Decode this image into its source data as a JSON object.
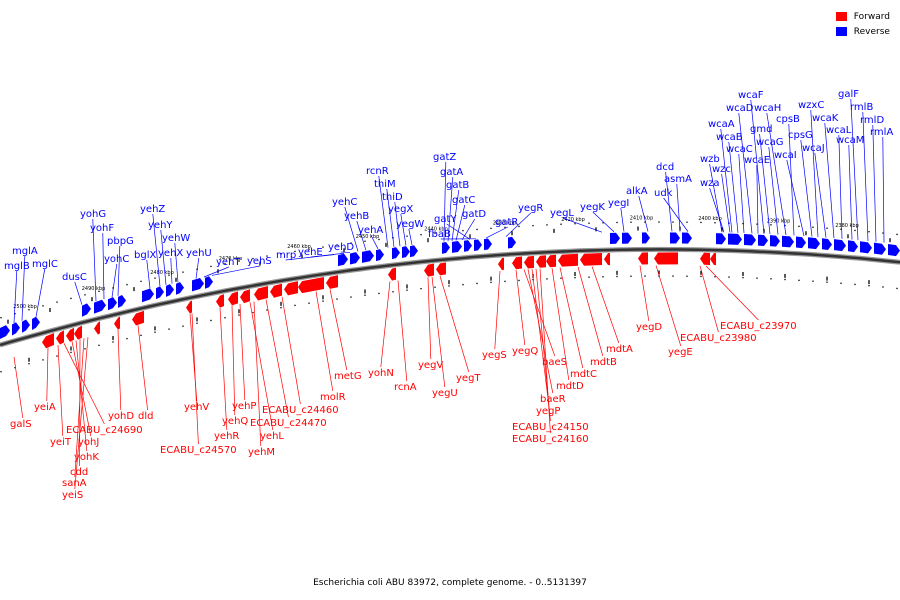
{
  "legend": {
    "forward": {
      "label": "Forward",
      "color": "#ff0000"
    },
    "reverse": {
      "label": "Reverse",
      "color": "#0000ff"
    }
  },
  "caption": "Escherichia coli ABU 83972, complete genome. - 0..5131397",
  "ticks": [
    "2500 kbp",
    "2490 kbp",
    "2480 kbp",
    "2470 kbp",
    "2460 kbp",
    "2450 kbp",
    "2440 kbp",
    "2430 kbp",
    "2420 kbp",
    "2410 kbp",
    "2400 kbp",
    "2390 kbp",
    "2380 kbp"
  ],
  "reverse_genes": [
    "mglA",
    "mglB",
    "mglC",
    "dusC",
    "yohG",
    "yohF",
    "yohC",
    "pbpG",
    "bglX",
    "yehZ",
    "yehY",
    "yehX",
    "yehW",
    "yehU",
    "yehT",
    "yehS",
    "mrp",
    "yehE",
    "yehD",
    "yehC",
    "yehB",
    "yehA",
    "rcnR",
    "thiM",
    "thiD",
    "yegX",
    "yegW",
    "gatZ",
    "gatA",
    "gatB",
    "gatC",
    "gatD",
    "gatY",
    "fbaB",
    "gatR",
    "yegR",
    "yegL",
    "yegK",
    "yegI",
    "alkA",
    "dcd",
    "asmA",
    "udk",
    "wzb",
    "wzc",
    "wza",
    "wcaA",
    "wcaB",
    "wcaC",
    "wcaD",
    "wcaE",
    "wcaF",
    "gmd",
    "wcaG",
    "wcaH",
    "cpsB",
    "wcaI",
    "cpsG",
    "wzxC",
    "wcaJ",
    "wcaK",
    "wcaL",
    "wcaM",
    "galF",
    "rmlB",
    "rmlD",
    "rmlA"
  ],
  "forward_genes": [
    "galS",
    "yeiA",
    "yeiT",
    "ECABU_c24690",
    "yohJ",
    "yohK",
    "cdd",
    "sanA",
    "yeiS",
    "yohD",
    "dld",
    "yehV",
    "ECABU_c24570",
    "yehR",
    "yehQ",
    "yehP",
    "yehL",
    "yehM",
    "ECABU_c24470",
    "ECABU_c24460",
    "molR",
    "metG",
    "yohN",
    "rcnA",
    "yegV",
    "yegU",
    "yegT",
    "yegS",
    "yegQ",
    "baeS",
    "baeR",
    "yegP",
    "ECABU_c24150",
    "ECABU_c24160",
    "mdtD",
    "mdtC",
    "mdtB",
    "mdtA",
    "yegD",
    "yegE",
    "ECABU_c23980",
    "ECABU_c23970"
  ]
}
